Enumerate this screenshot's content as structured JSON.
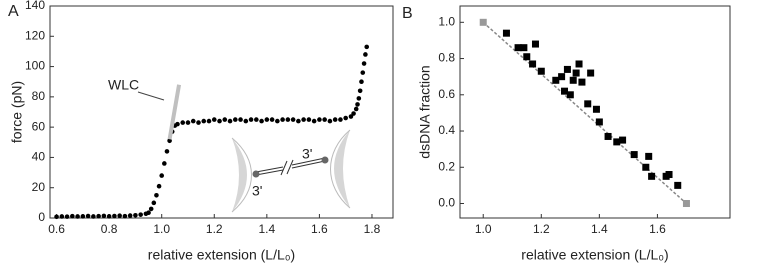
{
  "chart_data": [
    {
      "type": "scatter",
      "panel_label": "A",
      "x_label": "relative extension (L/L₀)",
      "y_label": "force (pN)",
      "annotations": [
        "WLC",
        "3'",
        "3'"
      ],
      "xlim": [
        0.575,
        1.88
      ],
      "ylim": [
        0,
        140
      ],
      "xticks": [
        0.6,
        0.8,
        {
          "value": 1,
          "label": "1.0"
        },
        1.2,
        1.4,
        1.6,
        1.8
      ],
      "yticks": [
        0,
        20,
        40,
        60,
        80,
        100,
        120,
        140
      ],
      "series": [
        {
          "marker": "circle",
          "color": "#000000",
          "x": [
            0.6,
            0.62,
            0.64,
            0.66,
            0.68,
            0.7,
            0.72,
            0.74,
            0.76,
            0.78,
            0.8,
            0.82,
            0.84,
            0.86,
            0.88,
            0.9,
            0.92,
            0.94,
            0.95,
            0.96,
            0.97,
            0.98,
            0.99,
            1.0,
            1.01,
            1.02,
            1.03,
            1.04,
            1.05,
            1.06,
            1.08,
            1.1,
            1.12,
            1.14,
            1.16,
            1.18,
            1.2,
            1.22,
            1.24,
            1.26,
            1.28,
            1.3,
            1.32,
            1.34,
            1.36,
            1.38,
            1.4,
            1.42,
            1.44,
            1.46,
            1.48,
            1.5,
            1.52,
            1.54,
            1.56,
            1.58,
            1.6,
            1.62,
            1.64,
            1.66,
            1.68,
            1.7,
            1.72,
            1.73,
            1.74,
            1.745,
            1.75,
            1.755,
            1.76,
            1.765,
            1.77,
            1.775,
            1.78
          ],
          "values": [
            0.8,
            1,
            0.9,
            1.2,
            1,
            1.1,
            1.3,
            1,
            1.2,
            1.4,
            1.1,
            1.3,
            1.5,
            1.2,
            1.6,
            1.8,
            2.2,
            2.8,
            3.5,
            6,
            10,
            15,
            21,
            28,
            36,
            44,
            51,
            57,
            61,
            62,
            63,
            63,
            64,
            63,
            64,
            64,
            65,
            64,
            65,
            64,
            65,
            65,
            64,
            65,
            65,
            64,
            65,
            65,
            64,
            65,
            65,
            65,
            64,
            65,
            65,
            64,
            65,
            65,
            64,
            65,
            65,
            66,
            67,
            69,
            72,
            75,
            79,
            84,
            90,
            96,
            102,
            108,
            113
          ]
        },
        {
          "marker": "line",
          "color": "#c0c0c0",
          "x": [
            1.03,
            1.066
          ],
          "values": [
            52,
            88
          ]
        }
      ]
    },
    {
      "type": "scatter",
      "panel_label": "B",
      "x_label": "relative extension (L/L₀)",
      "y_label": "dsDNA fraction",
      "xlim": [
        0.92,
        1.85
      ],
      "ylim": [
        -0.08,
        1.09
      ],
      "xticks": [
        {
          "value": 1,
          "label": "1.0"
        },
        1.2,
        1.4,
        1.6
      ],
      "yticks": [
        {
          "value": 0,
          "label": "0.0"
        },
        0.2,
        0.4,
        0.6,
        0.8,
        {
          "value": 1,
          "label": "1.0"
        }
      ],
      "series": [
        {
          "marker": "dashed",
          "color": "#888888",
          "x": [
            1,
            1.7
          ],
          "values": [
            1,
            0
          ]
        },
        {
          "marker": "square",
          "color": "#000000",
          "x": [
            1.08,
            1.12,
            1.14,
            1.15,
            1.17,
            1.18,
            1.2,
            1.25,
            1.27,
            1.28,
            1.29,
            1.3,
            1.31,
            1.32,
            1.33,
            1.34,
            1.36,
            1.37,
            1.39,
            1.4,
            1.43,
            1.46,
            1.48,
            1.52,
            1.56,
            1.57,
            1.58,
            1.63,
            1.64,
            1.67
          ],
          "values": [
            0.94,
            0.86,
            0.86,
            0.81,
            0.77,
            0.88,
            0.73,
            0.68,
            0.7,
            0.62,
            0.74,
            0.6,
            0.68,
            0.72,
            0.77,
            0.67,
            0.55,
            0.72,
            0.52,
            0.45,
            0.37,
            0.34,
            0.35,
            0.27,
            0.2,
            0.26,
            0.15,
            0.15,
            0.16,
            0.1
          ]
        },
        {
          "marker": "square",
          "color": "#999999",
          "x": [
            1,
            1.7
          ],
          "values": [
            1,
            0
          ]
        }
      ]
    }
  ]
}
